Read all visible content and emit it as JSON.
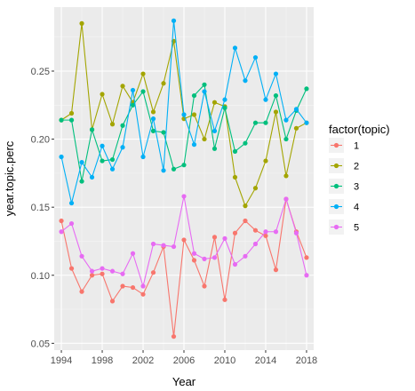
{
  "chart_data": {
    "type": "line",
    "xlabel": "Year",
    "ylabel": "year.topic.perc",
    "xlim": [
      1993.3,
      2018.7
    ],
    "ylim": [
      0.045,
      0.297
    ],
    "x_ticks": [
      1994,
      1998,
      2002,
      2006,
      2010,
      2014,
      2018
    ],
    "y_ticks": [
      0.05,
      0.1,
      0.15,
      0.2,
      0.25
    ],
    "y_tick_labels": [
      "0.05",
      "0.10",
      "0.15",
      "0.20",
      "0.25"
    ],
    "grid": true,
    "legend_title": "factor(topic)",
    "legend_position": "right",
    "x": [
      1994,
      1995,
      1996,
      1997,
      1998,
      1999,
      2000,
      2001,
      2002,
      2003,
      2004,
      2005,
      2006,
      2007,
      2008,
      2009,
      2010,
      2011,
      2012,
      2013,
      2014,
      2015,
      2016,
      2017,
      2018
    ],
    "series": [
      {
        "name": "1",
        "color": "#F8766D",
        "values": [
          0.14,
          0.105,
          0.088,
          0.1,
          0.101,
          0.081,
          0.092,
          0.091,
          0.086,
          0.102,
          0.121,
          0.055,
          0.126,
          0.111,
          0.092,
          0.128,
          0.082,
          0.131,
          0.14,
          0.133,
          0.129,
          0.104,
          0.156,
          0.132,
          0.113
        ]
      },
      {
        "name": "2",
        "color": "#A3A500",
        "values": [
          0.214,
          0.219,
          0.285,
          0.207,
          0.233,
          0.211,
          0.239,
          0.227,
          0.248,
          0.22,
          0.241,
          0.272,
          0.215,
          0.218,
          0.2,
          0.227,
          0.224,
          0.172,
          0.151,
          0.164,
          0.184,
          0.22,
          0.173,
          0.208,
          0.212
        ]
      },
      {
        "name": "3",
        "color": "#00BF7D",
        "values": [
          0.214,
          0.214,
          0.169,
          0.207,
          0.184,
          0.185,
          0.21,
          0.225,
          0.235,
          0.206,
          0.205,
          0.178,
          0.181,
          0.232,
          0.24,
          0.193,
          0.223,
          0.191,
          0.197,
          0.212,
          0.212,
          0.232,
          0.2,
          0.221,
          0.237
        ]
      },
      {
        "name": "4",
        "color": "#00B0F6",
        "values": [
          0.187,
          0.153,
          0.183,
          0.172,
          0.195,
          0.178,
          0.194,
          0.236,
          0.187,
          0.215,
          0.177,
          0.287,
          0.218,
          0.196,
          0.235,
          0.206,
          0.229,
          0.267,
          0.243,
          0.26,
          0.229,
          0.248,
          0.214,
          0.222,
          0.212
        ]
      },
      {
        "name": "5",
        "color": "#E76BF3",
        "values": [
          0.132,
          0.138,
          0.114,
          0.103,
          0.105,
          0.103,
          0.101,
          0.116,
          0.092,
          0.123,
          0.122,
          0.121,
          0.158,
          0.116,
          0.112,
          0.113,
          0.127,
          0.108,
          0.114,
          0.123,
          0.132,
          0.132,
          0.156,
          0.131,
          0.1
        ]
      }
    ]
  }
}
